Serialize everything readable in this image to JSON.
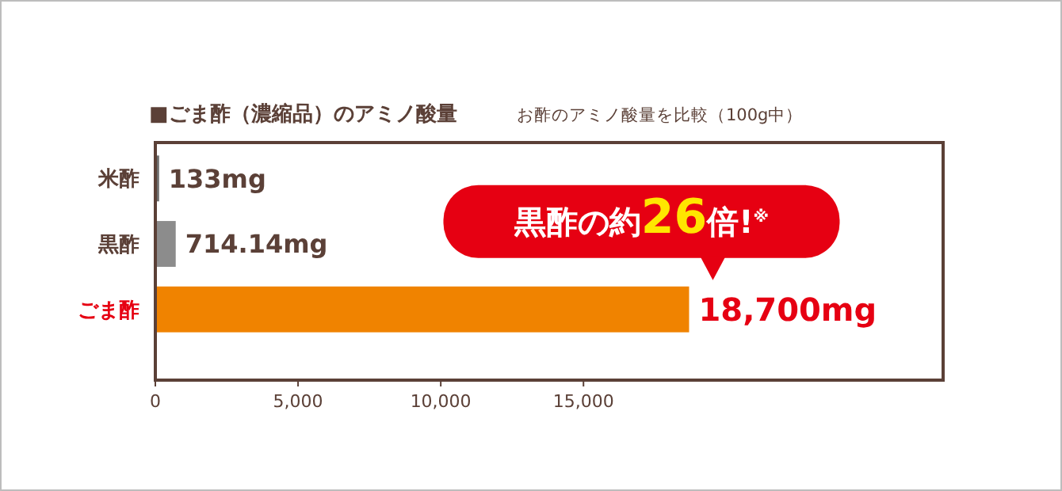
{
  "chart_data": {
    "type": "bar",
    "orientation": "horizontal",
    "title": "■ごま酢（濃縮品）のアミノ酸量",
    "subtitle": "お酢のアミノ酸量を比較（100g中）",
    "categories": [
      "米酢",
      "黒酢",
      "ごま酢"
    ],
    "values": [
      133,
      714.14,
      18700
    ],
    "colors": [
      "#6e6e6e",
      "#8c8c8c",
      "#f08300"
    ],
    "value_labels": [
      "133mg",
      "714.14mg",
      "18,700mg"
    ],
    "xlim": [
      0,
      27600
    ],
    "xticks": [
      {
        "value": 0,
        "label": "0"
      },
      {
        "value": 5000,
        "label": "5,000"
      },
      {
        "value": 10000,
        "label": "10,000"
      },
      {
        "value": 15000,
        "label": "15,000"
      }
    ],
    "grid": false,
    "annotations": [
      {
        "text": "黒酢の約26倍!$^{※}$",
        "x": 18700,
        "y": "ごま酢"
      }
    ]
  }
}
